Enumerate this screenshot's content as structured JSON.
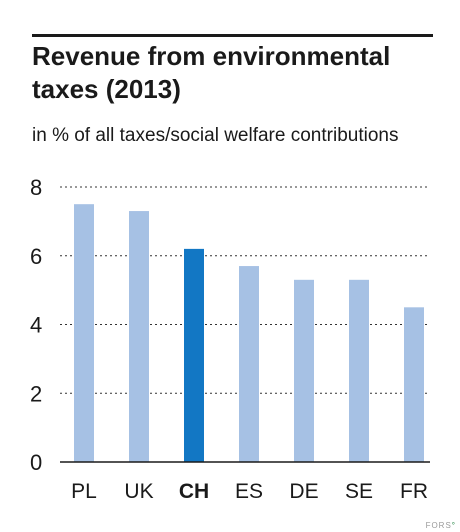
{
  "chart_data": {
    "type": "bar",
    "title": "Revenue from environmental taxes (2013)",
    "subtitle": "in % of all taxes/social welfare contributions",
    "categories": [
      "PL",
      "UK",
      "CH",
      "ES",
      "DE",
      "SE",
      "FR"
    ],
    "values": [
      7.5,
      7.3,
      6.2,
      5.7,
      5.3,
      5.3,
      4.5
    ],
    "highlight": "CH",
    "ylim": [
      0,
      8
    ],
    "yticks": [
      0,
      2,
      4,
      6,
      8
    ],
    "grid": true,
    "colors": {
      "bar": "#a6c1e4",
      "highlight": "#1277c4",
      "grid": "#333333",
      "axis": "#1a1a1a"
    }
  },
  "logo": {
    "text": "FORS",
    "mark": "°"
  }
}
